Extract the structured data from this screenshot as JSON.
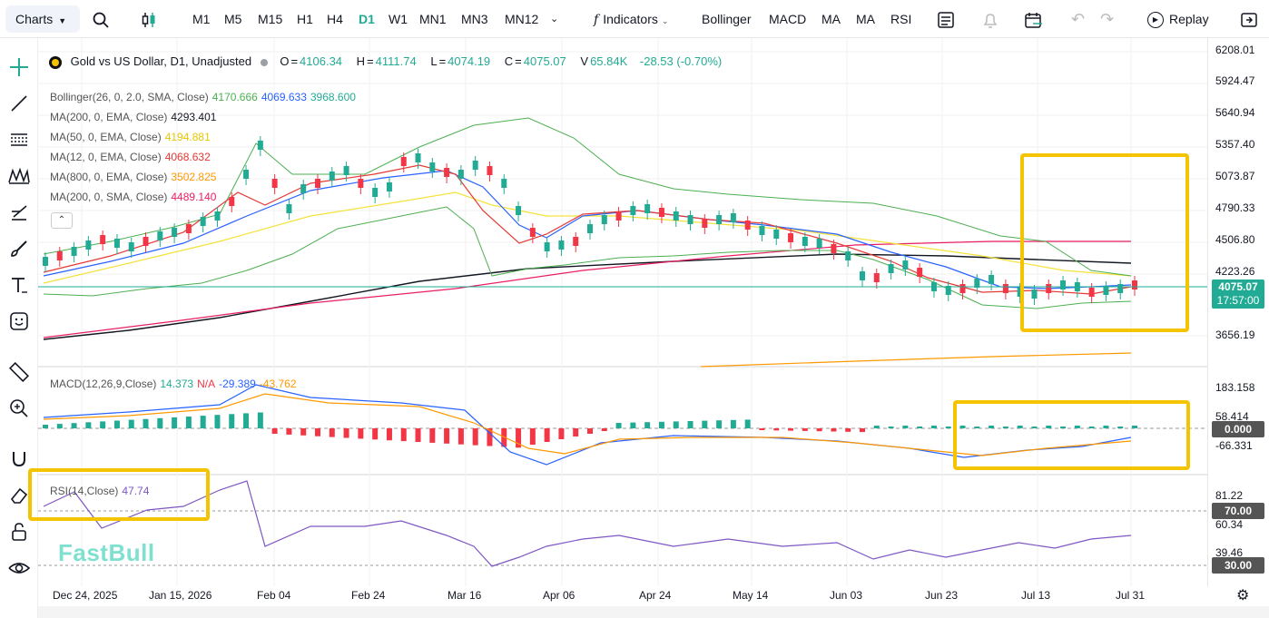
{
  "toolbar": {
    "charts_label": "Charts",
    "timeframes": [
      "M1",
      "M5",
      "M15",
      "H1",
      "H4",
      "D1",
      "W1",
      "MN1",
      "MN3",
      "MN12"
    ],
    "active_timeframe": "D1",
    "indicators_label": "Indicators",
    "indicator_shortcuts": [
      "Bollinger",
      "MACD",
      "MA",
      "MA",
      "RSI"
    ],
    "replay_label": "Replay"
  },
  "sidebar": {
    "tools": [
      "crosshair-icon",
      "trend-line-icon",
      "horizontal-lines-icon",
      "pattern-icon",
      "fib-icon",
      "brush-icon",
      "text-icon",
      "emoji-icon",
      "ruler-icon",
      "zoom-in-icon",
      "magnet-icon",
      "eraser-icon",
      "lock-icon",
      "eye-icon"
    ]
  },
  "header": {
    "symbol": "Gold vs US Dollar, D1, Unadjusted",
    "open_label": "O",
    "open": "4106.34",
    "high_label": "H",
    "high": "4111.74",
    "low_label": "L",
    "low": "4074.19",
    "close_label": "C",
    "close": "4075.07",
    "volume_label": "V",
    "volume": "65.84K",
    "change": "-28.53 (-0.70%)"
  },
  "legends": {
    "bollinger": {
      "name": "Bollinger(26, 0, 2.0, SMA, Close)",
      "upper": "4170.666",
      "middle": "4069.633",
      "lower": "3968.600"
    },
    "ma1": {
      "name": "MA(200, 0, EMA, Close)",
      "value": "4293.401"
    },
    "ma2": {
      "name": "MA(50, 0, EMA, Close)",
      "value": "4194.881"
    },
    "ma3": {
      "name": "MA(12, 0, EMA, Close)",
      "value": "4068.632"
    },
    "ma4": {
      "name": "MA(800, 0, EMA, Close)",
      "value": "3502.825"
    },
    "ma5": {
      "name": "MA(200, 0, SMA, Close)",
      "value": "4489.140"
    },
    "macd": {
      "name": "MACD(12,26,9,Close)",
      "hist": "14.373",
      "na": "N/A",
      "macd": "-29.389",
      "signal": "-43.762"
    },
    "rsi": {
      "name": "RSI(14,Close)",
      "value": "47.74"
    }
  },
  "price_scale": {
    "ticks": [
      "6208.01",
      "5924.47",
      "5640.94",
      "5357.40",
      "5073.87",
      "4790.33",
      "4506.80",
      "4223.26",
      "3656.19"
    ],
    "last_price": "4075.07",
    "countdown": "17:57:00"
  },
  "macd_scale": {
    "ticks": [
      "183.158",
      "58.414",
      "-66.331"
    ],
    "zero": "0.000"
  },
  "rsi_scale": {
    "ticks": [
      "81.22",
      "60.34",
      "39.46"
    ],
    "upper": "70.00",
    "lower": "30.00"
  },
  "time_axis": {
    "ticks": [
      "Dec 24, 2025",
      "Jan 15, 2026",
      "Feb 04",
      "Feb 24",
      "Mar 16",
      "Apr 06",
      "Apr 24",
      "May 14",
      "Jun 03",
      "Jun 23",
      "Jul 13",
      "Jul 31"
    ]
  },
  "watermark": "FastBull",
  "colors": {
    "up": "#22ab94",
    "down": "#f23645",
    "bollinger": "#4caf50",
    "ma200ema": "#131722",
    "ma50": "#f5e23b",
    "ma12": "#e53935",
    "ma800": "#ff9800",
    "ma200sma": "#e91e63",
    "macd": "#2962ff",
    "signal": "#ff9800",
    "rsi": "#7e57c2",
    "highlight": "#f5c400",
    "accent": "#22ab94"
  }
}
